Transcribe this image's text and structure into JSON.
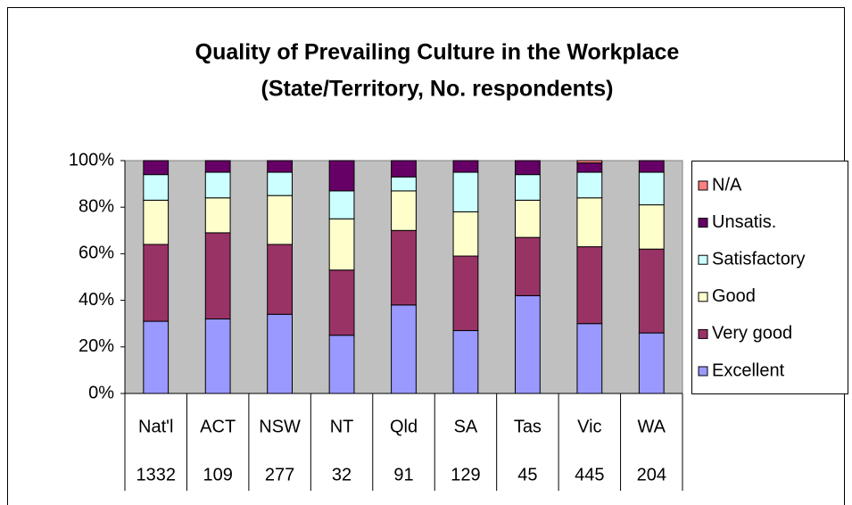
{
  "chart_data": {
    "type": "stacked_bar_100",
    "title": [
      "Quality of Prevailing Culture in the Workplace",
      "(State/Territory, No. respondents)"
    ],
    "categories": [
      "Nat'l",
      "ACT",
      "NSW",
      "NT",
      "Qld",
      "SA",
      "Tas",
      "Vic",
      "WA"
    ],
    "category_counts": [
      "1332",
      "109",
      "277",
      "32",
      "91",
      "129",
      "45",
      "445",
      "204"
    ],
    "series": [
      {
        "name": "Excellent",
        "color": "#9999ff",
        "values": [
          31,
          32,
          34,
          25,
          38,
          27,
          42,
          30,
          26
        ]
      },
      {
        "name": "Very good",
        "color": "#993366",
        "values": [
          33,
          37,
          30,
          28,
          32,
          32,
          25,
          33,
          36
        ]
      },
      {
        "name": "Good",
        "color": "#ffffcc",
        "values": [
          19,
          15,
          21,
          22,
          17,
          19,
          16,
          21,
          19
        ]
      },
      {
        "name": "Satisfactory",
        "color": "#ccffff",
        "values": [
          11,
          11,
          10,
          12,
          6,
          17,
          11,
          11,
          14
        ]
      },
      {
        "name": "Unsatis.",
        "color": "#660066",
        "values": [
          6,
          5,
          5,
          13,
          7,
          5,
          6,
          4,
          5
        ]
      },
      {
        "name": "N/A",
        "color": "#ff8080",
        "values": [
          0,
          0,
          0,
          0,
          0,
          0,
          0,
          1,
          0
        ]
      }
    ],
    "ylim": [
      0,
      100
    ],
    "yticks": [
      {
        "value": 0,
        "label": "0%"
      },
      {
        "value": 20,
        "label": "20%"
      },
      {
        "value": 40,
        "label": "40%"
      },
      {
        "value": 60,
        "label": "60%"
      },
      {
        "value": 80,
        "label": "80%"
      },
      {
        "value": 100,
        "label": "100%"
      }
    ],
    "grid": false,
    "legend": "right",
    "plot_background": "#c0c0c0"
  }
}
